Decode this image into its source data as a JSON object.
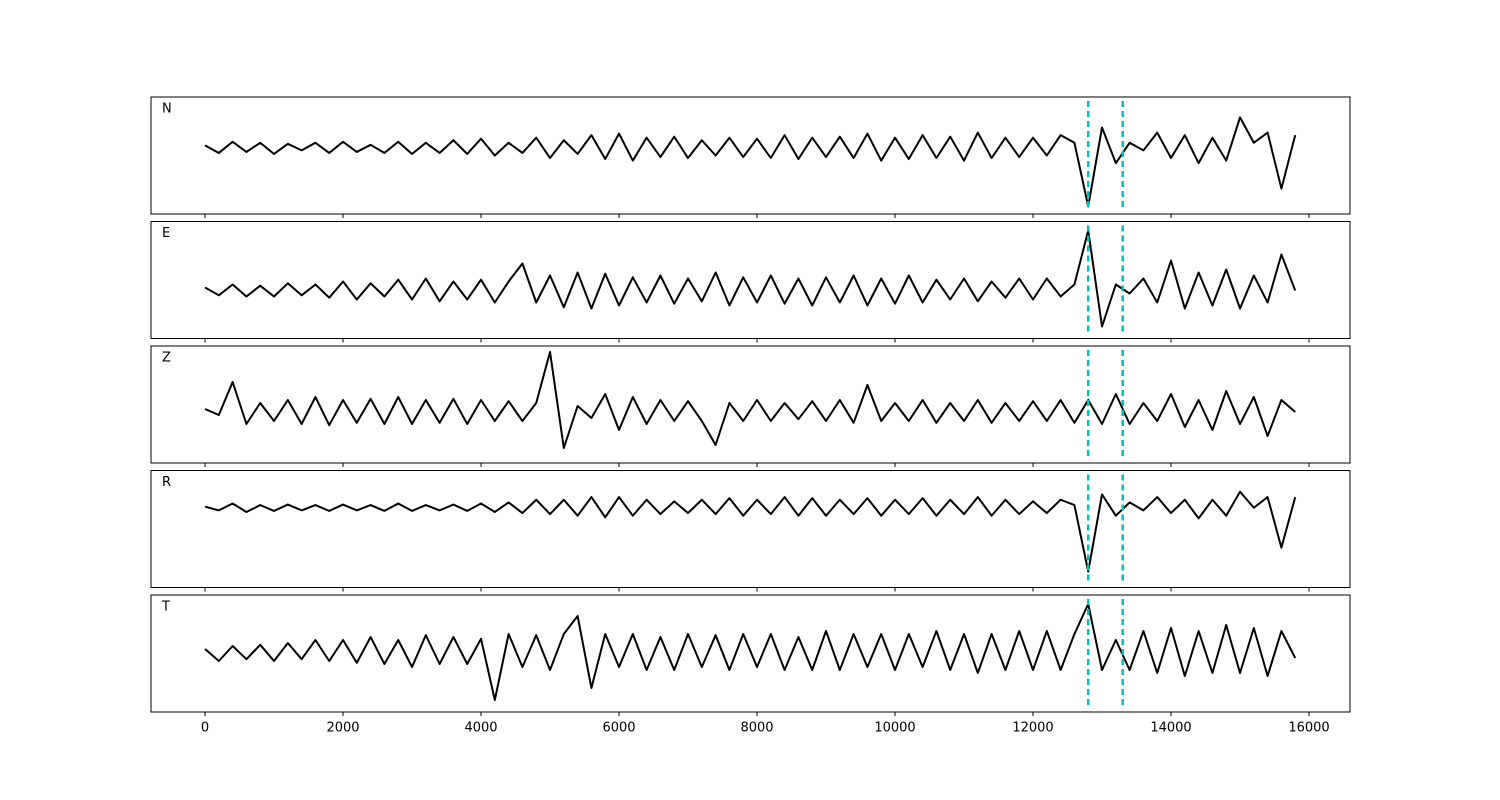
{
  "chart_data": [
    {
      "type": "line",
      "label": "N",
      "color": "#000000",
      "vlines": [
        12800,
        13300
      ],
      "vline_color": "#00bfbf",
      "xlim": [
        -783,
        16594
      ],
      "ylim": [
        -1.3,
        1.0
      ],
      "xticks": [
        0,
        2000,
        4000,
        6000,
        8000,
        10000,
        12000,
        14000,
        16000
      ],
      "x": [
        0,
        200,
        400,
        600,
        800,
        1000,
        1200,
        1400,
        1600,
        1800,
        2000,
        2200,
        2400,
        2600,
        2800,
        3000,
        3200,
        3400,
        3600,
        3800,
        4000,
        4200,
        4400,
        4600,
        4800,
        5000,
        5200,
        5400,
        5600,
        5800,
        6000,
        6200,
        6400,
        6600,
        6800,
        7000,
        7200,
        7400,
        7600,
        7800,
        8000,
        8200,
        8400,
        8600,
        8800,
        9000,
        9200,
        9400,
        9600,
        9800,
        10000,
        10200,
        10400,
        10600,
        10800,
        11000,
        11200,
        11400,
        11600,
        11800,
        12000,
        12200,
        12400,
        12600,
        12800,
        13000,
        13200,
        13400,
        13600,
        13800,
        14000,
        14200,
        14400,
        14600,
        14800,
        15000,
        15200,
        15400,
        15600,
        15800
      ],
      "values": [
        0.05,
        -0.1,
        0.12,
        -0.08,
        0.1,
        -0.12,
        0.08,
        -0.05,
        0.1,
        -0.1,
        0.12,
        -0.08,
        0.06,
        -0.1,
        0.12,
        -0.12,
        0.1,
        -0.1,
        0.15,
        -0.12,
        0.18,
        -0.15,
        0.1,
        -0.1,
        0.2,
        -0.2,
        0.15,
        -0.12,
        0.25,
        -0.22,
        0.28,
        -0.25,
        0.2,
        -0.18,
        0.22,
        -0.2,
        0.15,
        -0.15,
        0.2,
        -0.18,
        0.18,
        -0.2,
        0.25,
        -0.22,
        0.2,
        -0.18,
        0.22,
        -0.2,
        0.28,
        -0.25,
        0.2,
        -0.22,
        0.25,
        -0.2,
        0.22,
        -0.25,
        0.3,
        -0.2,
        0.2,
        -0.18,
        0.2,
        -0.15,
        0.25,
        0.1,
        -1.15,
        0.4,
        -0.3,
        0.1,
        -0.05,
        0.3,
        -0.2,
        0.25,
        -0.3,
        0.2,
        -0.25,
        0.6,
        0.1,
        0.3,
        -0.8,
        0.25
      ]
    },
    {
      "type": "line",
      "label": "E",
      "color": "#000000",
      "vlines": [
        12800,
        13300
      ],
      "vline_color": "#00bfbf",
      "xlim": [
        -783,
        16594
      ],
      "ylim": [
        -0.8,
        1.15
      ],
      "xticks": [
        0,
        2000,
        4000,
        6000,
        8000,
        10000,
        12000,
        14000,
        16000
      ],
      "x": [
        0,
        200,
        400,
        600,
        800,
        1000,
        1200,
        1400,
        1600,
        1800,
        2000,
        2200,
        2400,
        2600,
        2800,
        3000,
        3200,
        3400,
        3600,
        3800,
        4000,
        4200,
        4400,
        4600,
        4800,
        5000,
        5200,
        5400,
        5600,
        5800,
        6000,
        6200,
        6400,
        6600,
        6800,
        7000,
        7200,
        7400,
        7600,
        7800,
        8000,
        8200,
        8400,
        8600,
        8800,
        9000,
        9200,
        9400,
        9600,
        9800,
        10000,
        10200,
        10400,
        10600,
        10800,
        11000,
        11200,
        11400,
        11600,
        11800,
        12000,
        12200,
        12400,
        12600,
        12800,
        13000,
        13200,
        13400,
        13600,
        13800,
        14000,
        14200,
        14400,
        14600,
        14800,
        15000,
        15200,
        15400,
        15600,
        15800
      ],
      "values": [
        0.05,
        -0.08,
        0.1,
        -0.1,
        0.08,
        -0.1,
        0.12,
        -0.08,
        0.1,
        -0.12,
        0.15,
        -0.15,
        0.12,
        -0.1,
        0.18,
        -0.15,
        0.2,
        -0.18,
        0.15,
        -0.15,
        0.18,
        -0.2,
        0.15,
        0.45,
        -0.2,
        0.25,
        -0.28,
        0.3,
        -0.3,
        0.28,
        -0.25,
        0.22,
        -0.2,
        0.25,
        -0.22,
        0.2,
        -0.18,
        0.3,
        -0.25,
        0.22,
        -0.2,
        0.25,
        -0.22,
        0.2,
        -0.25,
        0.22,
        -0.2,
        0.25,
        -0.25,
        0.2,
        -0.22,
        0.25,
        -0.2,
        0.18,
        -0.15,
        0.2,
        -0.18,
        0.15,
        -0.12,
        0.2,
        -0.15,
        0.2,
        -0.1,
        0.1,
        1.0,
        -0.6,
        0.1,
        -0.05,
        0.2,
        -0.2,
        0.5,
        -0.3,
        0.3,
        -0.25,
        0.35,
        -0.3,
        0.25,
        -0.2,
        0.6,
        0.0
      ]
    },
    {
      "type": "line",
      "label": "Z",
      "color": "#000000",
      "vlines": [
        12800,
        13300
      ],
      "vline_color": "#00bfbf",
      "xlim": [
        -783,
        16594
      ],
      "ylim": [
        -0.85,
        1.1
      ],
      "xticks": [
        0,
        2000,
        4000,
        6000,
        8000,
        10000,
        12000,
        14000,
        16000
      ],
      "x": [
        0,
        200,
        400,
        600,
        800,
        1000,
        1200,
        1400,
        1600,
        1800,
        2000,
        2200,
        2400,
        2600,
        2800,
        3000,
        3200,
        3400,
        3600,
        3800,
        4000,
        4200,
        4400,
        4600,
        4800,
        5000,
        5200,
        5400,
        5600,
        5800,
        6000,
        6200,
        6400,
        6600,
        6800,
        7000,
        7200,
        7400,
        7600,
        7800,
        8000,
        8200,
        8400,
        8600,
        8800,
        9000,
        9200,
        9400,
        9600,
        9800,
        10000,
        10200,
        10400,
        10600,
        10800,
        11000,
        11200,
        11400,
        11600,
        11800,
        12000,
        12200,
        12400,
        12600,
        12800,
        13000,
        13200,
        13400,
        13600,
        13800,
        14000,
        14200,
        14400,
        14600,
        14800,
        15000,
        15200,
        15400,
        15600,
        15800
      ],
      "values": [
        0.05,
        -0.05,
        0.5,
        -0.2,
        0.15,
        -0.15,
        0.2,
        -0.2,
        0.25,
        -0.22,
        0.2,
        -0.18,
        0.22,
        -0.2,
        0.25,
        -0.2,
        0.2,
        -0.18,
        0.22,
        -0.2,
        0.2,
        -0.15,
        0.18,
        -0.15,
        0.15,
        1.0,
        -0.6,
        0.1,
        -0.1,
        0.3,
        -0.3,
        0.25,
        -0.2,
        0.2,
        -0.15,
        0.18,
        -0.15,
        -0.55,
        0.15,
        -0.15,
        0.2,
        -0.15,
        0.15,
        -0.12,
        0.18,
        -0.15,
        0.2,
        -0.18,
        0.45,
        -0.15,
        0.15,
        -0.15,
        0.2,
        -0.18,
        0.15,
        -0.15,
        0.2,
        -0.18,
        0.15,
        -0.15,
        0.18,
        -0.15,
        0.2,
        -0.18,
        0.2,
        -0.2,
        0.3,
        -0.2,
        0.15,
        -0.15,
        0.3,
        -0.25,
        0.2,
        -0.3,
        0.35,
        -0.2,
        0.25,
        -0.4,
        0.2,
        0.0
      ]
    },
    {
      "type": "line",
      "label": "R",
      "color": "#000000",
      "vlines": [
        12800,
        13300
      ],
      "vline_color": "#00bfbf",
      "xlim": [
        -783,
        16594
      ],
      "ylim": [
        -1.5,
        0.7
      ],
      "xticks": [
        0,
        2000,
        4000,
        6000,
        8000,
        10000,
        12000,
        14000,
        16000
      ],
      "x": [
        0,
        200,
        400,
        600,
        800,
        1000,
        1200,
        1400,
        1600,
        1800,
        2000,
        2200,
        2400,
        2600,
        2800,
        3000,
        3200,
        3400,
        3600,
        3800,
        4000,
        4200,
        4400,
        4600,
        4800,
        5000,
        5200,
        5400,
        5600,
        5800,
        6000,
        6200,
        6400,
        6600,
        6800,
        7000,
        7200,
        7400,
        7600,
        7800,
        8000,
        8200,
        8400,
        8600,
        8800,
        9000,
        9200,
        9400,
        9600,
        9800,
        10000,
        10200,
        10400,
        10600,
        10800,
        11000,
        11200,
        11400,
        11600,
        11800,
        12000,
        12200,
        12400,
        12600,
        12800,
        13000,
        13200,
        13400,
        13600,
        13800,
        14000,
        14200,
        14400,
        14600,
        14800,
        15000,
        15200,
        15400,
        15600,
        15800
      ],
      "values": [
        0.02,
        -0.05,
        0.08,
        -0.08,
        0.05,
        -0.06,
        0.06,
        -0.05,
        0.05,
        -0.06,
        0.06,
        -0.05,
        0.05,
        -0.06,
        0.08,
        -0.06,
        0.05,
        -0.05,
        0.06,
        -0.06,
        0.08,
        -0.08,
        0.1,
        -0.1,
        0.15,
        -0.12,
        0.15,
        -0.15,
        0.2,
        -0.18,
        0.2,
        -0.15,
        0.15,
        -0.12,
        0.12,
        -0.1,
        0.15,
        -0.12,
        0.18,
        -0.15,
        0.15,
        -0.12,
        0.2,
        -0.15,
        0.18,
        -0.15,
        0.15,
        -0.12,
        0.18,
        -0.15,
        0.15,
        -0.12,
        0.18,
        -0.15,
        0.15,
        -0.12,
        0.2,
        -0.15,
        0.15,
        -0.12,
        0.12,
        -0.1,
        0.15,
        0.05,
        -1.2,
        0.25,
        -0.15,
        0.1,
        -0.05,
        0.2,
        -0.1,
        0.15,
        -0.2,
        0.15,
        -0.15,
        0.3,
        0.0,
        0.2,
        -0.75,
        0.2
      ]
    },
    {
      "type": "line",
      "label": "T",
      "color": "#000000",
      "vlines": [
        12800,
        13300
      ],
      "vline_color": "#00bfbf",
      "xlim": [
        -783,
        16594
      ],
      "ylim": [
        -1.0,
        0.95
      ],
      "xticks": [
        0,
        2000,
        4000,
        6000,
        8000,
        10000,
        12000,
        14000,
        16000
      ],
      "x": [
        0,
        200,
        400,
        600,
        800,
        1000,
        1200,
        1400,
        1600,
        1800,
        2000,
        2200,
        2400,
        2600,
        2800,
        3000,
        3200,
        3400,
        3600,
        3800,
        4000,
        4200,
        4400,
        4600,
        4800,
        5000,
        5200,
        5400,
        5600,
        5800,
        6000,
        6200,
        6400,
        6600,
        6800,
        7000,
        7200,
        7400,
        7600,
        7800,
        8000,
        8200,
        8400,
        8600,
        8800,
        9000,
        9200,
        9400,
        9600,
        9800,
        10000,
        10200,
        10400,
        10600,
        10800,
        11000,
        11200,
        11400,
        11600,
        11800,
        12000,
        12200,
        12400,
        12600,
        12800,
        13000,
        13200,
        13400,
        13600,
        13800,
        14000,
        14200,
        14400,
        14600,
        14800,
        15000,
        15200,
        15400,
        15600,
        15800
      ],
      "values": [
        0.05,
        -0.15,
        0.1,
        -0.12,
        0.12,
        -0.15,
        0.15,
        -0.12,
        0.2,
        -0.15,
        0.2,
        -0.18,
        0.25,
        -0.2,
        0.2,
        -0.25,
        0.28,
        -0.2,
        0.25,
        -0.2,
        0.22,
        -0.8,
        0.3,
        -0.25,
        0.28,
        -0.3,
        0.3,
        0.6,
        -0.6,
        0.3,
        -0.25,
        0.3,
        -0.3,
        0.25,
        -0.3,
        0.3,
        -0.25,
        0.28,
        -0.3,
        0.3,
        -0.25,
        0.3,
        -0.3,
        0.25,
        -0.3,
        0.35,
        -0.3,
        0.3,
        -0.25,
        0.3,
        -0.3,
        0.3,
        -0.25,
        0.35,
        -0.3,
        0.3,
        -0.35,
        0.3,
        -0.3,
        0.35,
        -0.3,
        0.35,
        -0.3,
        0.3,
        0.8,
        -0.3,
        0.2,
        -0.3,
        0.35,
        -0.35,
        0.4,
        -0.4,
        0.35,
        -0.35,
        0.45,
        -0.35,
        0.4,
        -0.4,
        0.35,
        -0.1
      ]
    }
  ]
}
